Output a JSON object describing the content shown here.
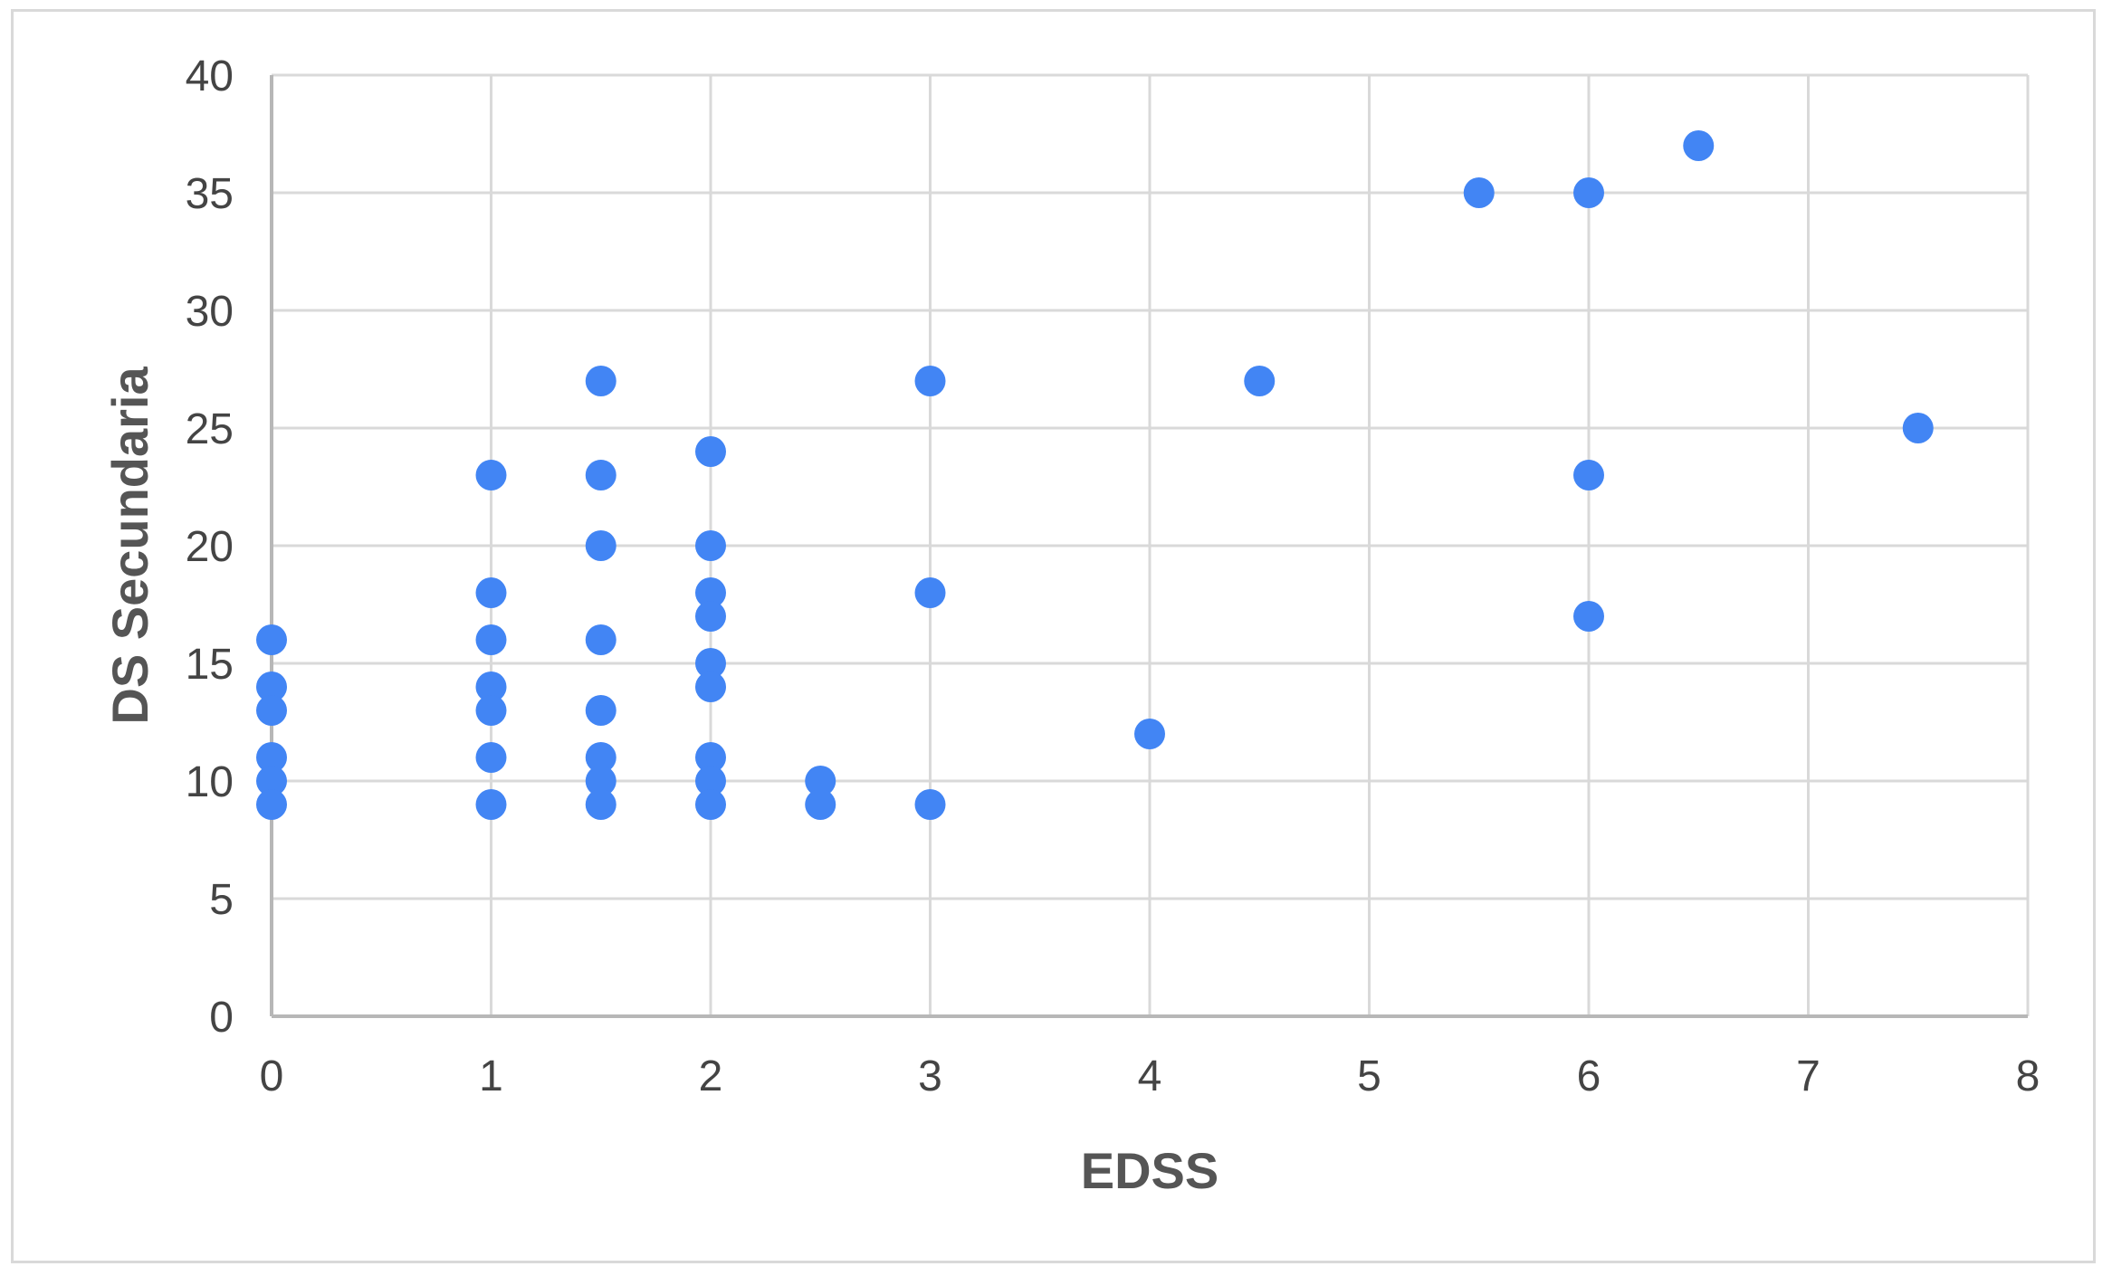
{
  "chart_data": {
    "type": "scatter",
    "title": "",
    "xlabel": "EDSS",
    "ylabel": "DS Secundaria",
    "xlim": [
      0,
      8
    ],
    "ylim": [
      0,
      40
    ],
    "x_ticks": [
      "0",
      "1",
      "2",
      "3",
      "4",
      "5",
      "6",
      "7",
      "8"
    ],
    "y_ticks": [
      "0",
      "5",
      "10",
      "15",
      "20",
      "25",
      "30",
      "35",
      "40"
    ],
    "grid": true,
    "legend": "none",
    "marker_color": "#4285f4",
    "grid_color": "#d9d9d9",
    "axis_color": "#b7b7b7",
    "points": [
      {
        "x": 0,
        "y": 16
      },
      {
        "x": 0,
        "y": 14
      },
      {
        "x": 0,
        "y": 13
      },
      {
        "x": 0,
        "y": 11
      },
      {
        "x": 0,
        "y": 10
      },
      {
        "x": 0,
        "y": 9
      },
      {
        "x": 1,
        "y": 23
      },
      {
        "x": 1,
        "y": 18
      },
      {
        "x": 1,
        "y": 16
      },
      {
        "x": 1,
        "y": 14
      },
      {
        "x": 1,
        "y": 13
      },
      {
        "x": 1,
        "y": 11
      },
      {
        "x": 1,
        "y": 9
      },
      {
        "x": 1.5,
        "y": 27
      },
      {
        "x": 1.5,
        "y": 23
      },
      {
        "x": 1.5,
        "y": 20
      },
      {
        "x": 1.5,
        "y": 16
      },
      {
        "x": 1.5,
        "y": 13
      },
      {
        "x": 1.5,
        "y": 11
      },
      {
        "x": 1.5,
        "y": 10
      },
      {
        "x": 1.5,
        "y": 9
      },
      {
        "x": 2,
        "y": 24
      },
      {
        "x": 2,
        "y": 20
      },
      {
        "x": 2,
        "y": 18
      },
      {
        "x": 2,
        "y": 17
      },
      {
        "x": 2,
        "y": 15
      },
      {
        "x": 2,
        "y": 14
      },
      {
        "x": 2,
        "y": 11
      },
      {
        "x": 2,
        "y": 10
      },
      {
        "x": 2,
        "y": 9
      },
      {
        "x": 2.5,
        "y": 10
      },
      {
        "x": 2.5,
        "y": 9
      },
      {
        "x": 3,
        "y": 27
      },
      {
        "x": 3,
        "y": 18
      },
      {
        "x": 3,
        "y": 9
      },
      {
        "x": 4,
        "y": 12
      },
      {
        "x": 4.5,
        "y": 27
      },
      {
        "x": 5.5,
        "y": 35
      },
      {
        "x": 6,
        "y": 35
      },
      {
        "x": 6,
        "y": 23
      },
      {
        "x": 6,
        "y": 17
      },
      {
        "x": 6.5,
        "y": 37
      },
      {
        "x": 7.5,
        "y": 25
      }
    ]
  }
}
